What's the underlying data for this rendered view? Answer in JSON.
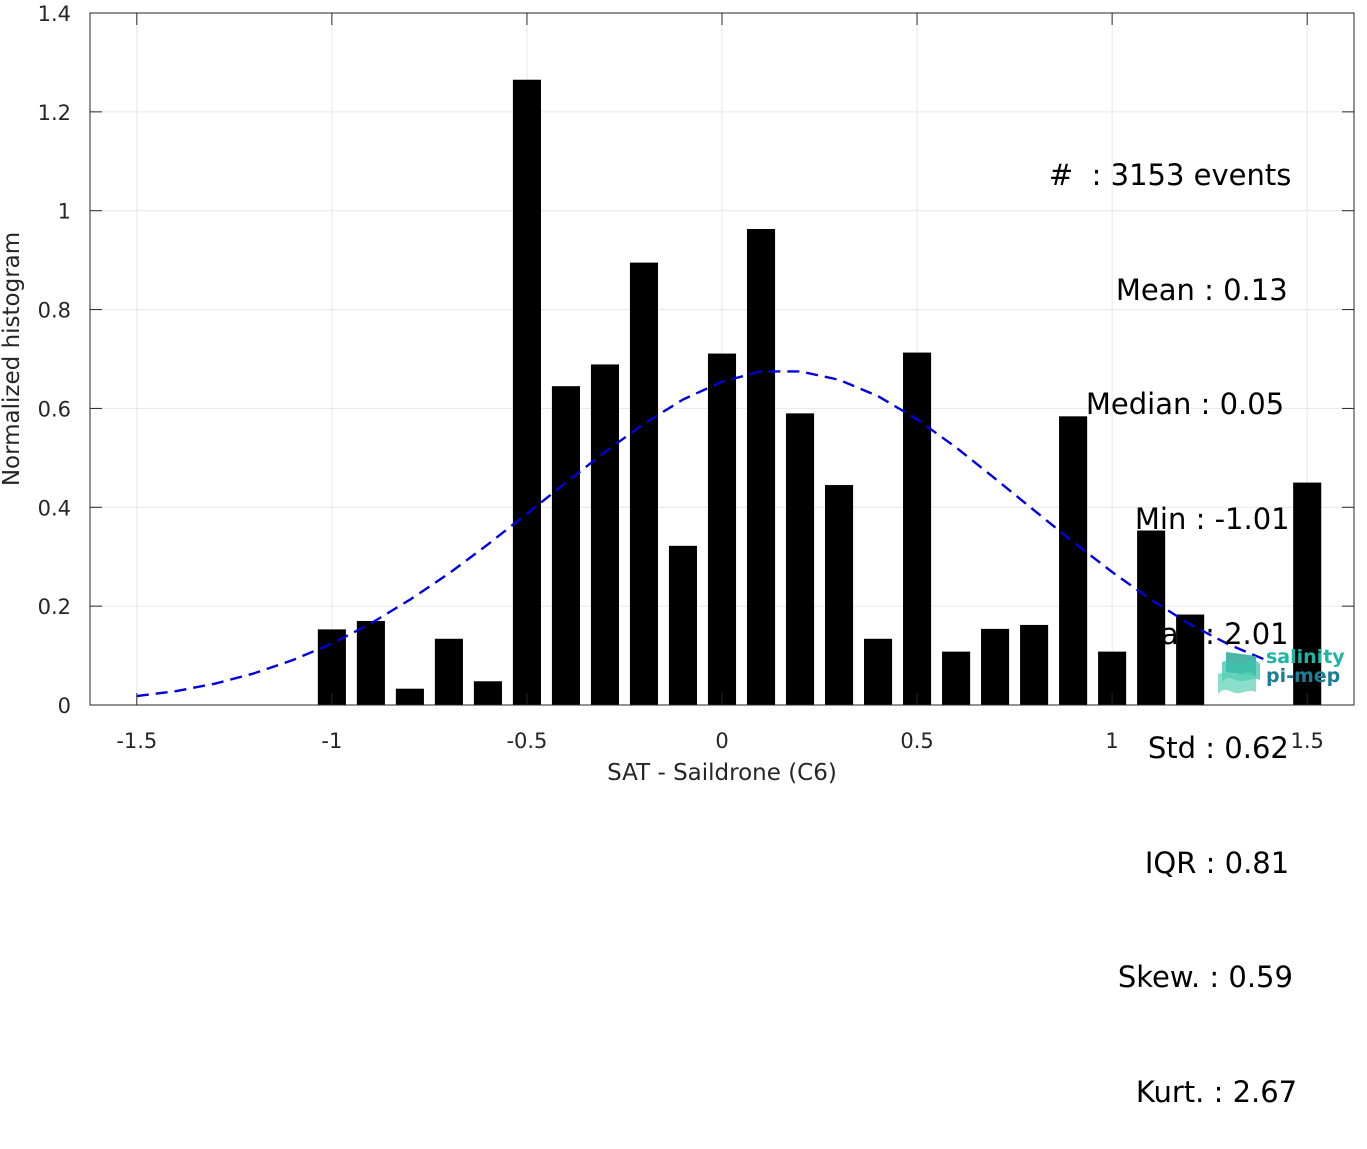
{
  "chart_data": {
    "type": "bar",
    "xlabel": "SAT - Saildrone (C6)",
    "ylabel": "Normalized histogram",
    "xlim": [
      -1.62,
      1.62
    ],
    "ylim": [
      0,
      1.4
    ],
    "xticks": [
      -1.5,
      -1,
      -0.5,
      0,
      0.5,
      1,
      1.5
    ],
    "xtick_labels": [
      "-1.5",
      "-1",
      "-0.5",
      "0",
      "0.5",
      "1",
      "1.5"
    ],
    "yticks": [
      0,
      0.2,
      0.4,
      0.6,
      0.8,
      1,
      1.2,
      1.4
    ],
    "ytick_labels": [
      "0",
      "0.2",
      "0.4",
      "0.6",
      "0.8",
      "1",
      "1.2",
      "1.4"
    ],
    "grid": true,
    "bar_width": 0.072,
    "bars": {
      "x": [
        -1.0,
        -0.9,
        -0.8,
        -0.7,
        -0.6,
        -0.5,
        -0.4,
        -0.3,
        -0.2,
        -0.1,
        0.0,
        0.1,
        0.2,
        0.3,
        0.4,
        0.5,
        0.6,
        0.7,
        0.8,
        0.9,
        1.0,
        1.1,
        1.2,
        1.5
      ],
      "values": [
        0.153,
        0.17,
        0.033,
        0.134,
        0.048,
        1.265,
        0.645,
        0.689,
        0.895,
        0.322,
        0.711,
        0.963,
        0.59,
        0.445,
        0.134,
        0.713,
        0.108,
        0.154,
        0.162,
        0.584,
        0.108,
        0.353,
        0.183,
        0.45
      ],
      "color": "#000000"
    },
    "fit_curve": {
      "style": "dashed",
      "color": "#0000dd",
      "x": [
        -1.5,
        -1.4,
        -1.3,
        -1.2,
        -1.1,
        -1.0,
        -0.9,
        -0.8,
        -0.7,
        -0.6,
        -0.5,
        -0.4,
        -0.3,
        -0.2,
        -0.1,
        0.0,
        0.1,
        0.2,
        0.3,
        0.4,
        0.5,
        0.6,
        0.7,
        0.8,
        0.9,
        1.0,
        1.1,
        1.2,
        1.3,
        1.4
      ],
      "y": [
        0.018,
        0.028,
        0.043,
        0.064,
        0.091,
        0.124,
        0.165,
        0.213,
        0.266,
        0.325,
        0.387,
        0.45,
        0.512,
        0.569,
        0.618,
        0.654,
        0.675,
        0.675,
        0.658,
        0.625,
        0.578,
        0.521,
        0.458,
        0.394,
        0.33,
        0.269,
        0.213,
        0.163,
        0.122,
        0.089
      ]
    },
    "stats": [
      {
        "label": "#  ",
        "value": "3153 events"
      },
      {
        "label": "Mean ",
        "value": "0.13"
      },
      {
        "label": "Median ",
        "value": "0.05"
      },
      {
        "label": "Min ",
        "value": "-1.01"
      },
      {
        "label": "Max ",
        "value": "2.01"
      },
      {
        "label": "Std ",
        "value": "0.62"
      },
      {
        "label": "IQR ",
        "value": "0.81"
      },
      {
        "label": "Skew. ",
        "value": "0.59"
      },
      {
        "label": "Kurt. ",
        "value": "2.67"
      }
    ]
  },
  "logo": {
    "line1": "salinity",
    "line2": "pi-mep",
    "icon": "salinity-waves-icon"
  }
}
